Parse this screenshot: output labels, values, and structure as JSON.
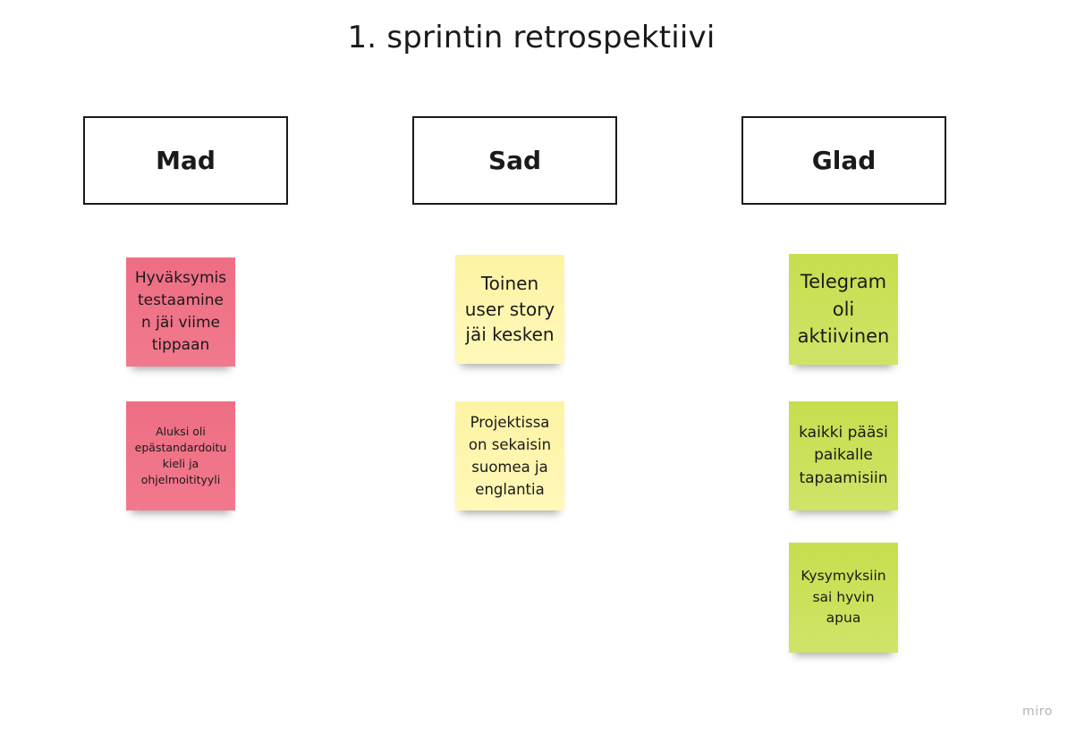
{
  "board": {
    "title": "1. sprintin retrospektiivi",
    "columns": [
      {
        "label": "Mad"
      },
      {
        "label": "Sad"
      },
      {
        "label": "Glad"
      }
    ],
    "notes": {
      "mad": [
        {
          "text": "Hyväksymis testaamine n jäi viime tippaan",
          "color": "#ef7086"
        },
        {
          "text": "Aluksi  oli epästandardoitu kieli ja ohjelmoitityyli",
          "color": "#ef7086"
        }
      ],
      "sad": [
        {
          "text": "Toinen user story jäi kesken",
          "color": "#fdf5ab"
        },
        {
          "text": "Projektissa on sekaisin suomea ja englantia",
          "color": "#fdf5ab"
        }
      ],
      "glad": [
        {
          "text": "Telegram oli aktiivinen",
          "color": "#c9e054"
        },
        {
          "text": "kaikki pääsi paikalle tapaamisiin",
          "color": "#c9e054"
        },
        {
          "text": "Kysymyksiin sai hyvin apua",
          "color": "#c9e054"
        }
      ]
    }
  },
  "watermark": "miro"
}
